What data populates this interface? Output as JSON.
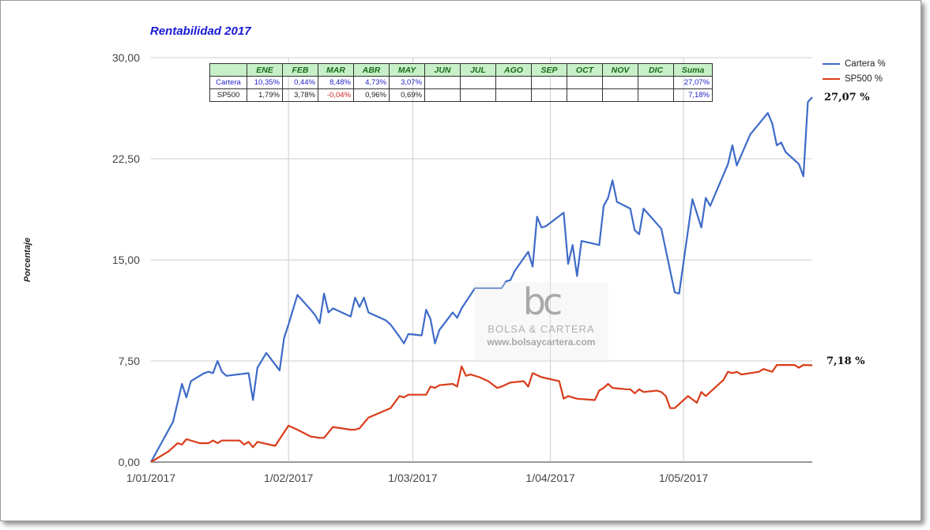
{
  "chart_data": {
    "type": "line",
    "title": "Rentabilidad 2017",
    "ylabel": "Porcentaje",
    "xlabel": "",
    "ylim": [
      0,
      30
    ],
    "yticks": [
      "0,00",
      "7,50",
      "15,00",
      "22,50",
      "30,00"
    ],
    "xticks": [
      "1/01/2017",
      "1/02/2017",
      "1/03/2017",
      "1/04/2017",
      "1/05/2017"
    ],
    "grid": true,
    "legend_position": "right",
    "series": [
      {
        "name": "Cartera %",
        "color": "#3e6bc8",
        "end_label": "27,07 %",
        "points": [
          [
            "2017-01-01",
            0.0
          ],
          [
            "2017-01-06",
            3.0
          ],
          [
            "2017-01-08",
            5.8
          ],
          [
            "2017-01-09",
            4.8
          ],
          [
            "2017-01-10",
            6.0
          ],
          [
            "2017-01-13",
            6.6
          ],
          [
            "2017-01-14",
            6.7
          ],
          [
            "2017-01-15",
            6.6
          ],
          [
            "2017-01-16",
            7.5
          ],
          [
            "2017-01-17",
            6.7
          ],
          [
            "2017-01-18",
            6.4
          ],
          [
            "2017-01-23",
            6.6
          ],
          [
            "2017-01-24",
            4.6
          ],
          [
            "2017-01-25",
            7.0
          ],
          [
            "2017-01-27",
            8.1
          ],
          [
            "2017-01-30",
            6.8
          ],
          [
            "2017-01-31",
            9.2
          ],
          [
            "2017-02-01",
            10.2
          ],
          [
            "2017-02-03",
            12.4
          ],
          [
            "2017-02-06",
            11.3
          ],
          [
            "2017-02-07",
            10.9
          ],
          [
            "2017-02-08",
            10.3
          ],
          [
            "2017-02-09",
            12.5
          ],
          [
            "2017-02-10",
            11.1
          ],
          [
            "2017-02-11",
            11.4
          ],
          [
            "2017-02-15",
            10.8
          ],
          [
            "2017-02-16",
            12.2
          ],
          [
            "2017-02-17",
            11.5
          ],
          [
            "2017-02-18",
            12.2
          ],
          [
            "2017-02-19",
            11.1
          ],
          [
            "2017-02-23",
            10.5
          ],
          [
            "2017-02-24",
            10.2
          ],
          [
            "2017-02-26",
            9.3
          ],
          [
            "2017-02-27",
            8.8
          ],
          [
            "2017-02-28",
            9.5
          ],
          [
            "2017-03-03",
            9.4
          ],
          [
            "2017-03-04",
            11.3
          ],
          [
            "2017-03-05",
            10.6
          ],
          [
            "2017-03-06",
            8.8
          ],
          [
            "2017-03-07",
            9.8
          ],
          [
            "2017-03-10",
            11.1
          ],
          [
            "2017-03-11",
            10.7
          ],
          [
            "2017-03-12",
            11.4
          ],
          [
            "2017-03-15",
            12.9
          ],
          [
            "2017-03-16",
            12.9
          ],
          [
            "2017-03-19",
            12.9
          ],
          [
            "2017-03-21",
            12.9
          ],
          [
            "2017-03-22",
            13.4
          ],
          [
            "2017-03-23",
            13.5
          ],
          [
            "2017-03-24",
            14.2
          ],
          [
            "2017-03-27",
            15.6
          ],
          [
            "2017-03-28",
            14.5
          ],
          [
            "2017-03-29",
            18.2
          ],
          [
            "2017-03-30",
            17.4
          ],
          [
            "2017-03-31",
            17.5
          ],
          [
            "2017-04-04",
            18.5
          ],
          [
            "2017-04-05",
            14.7
          ],
          [
            "2017-04-06",
            16.1
          ],
          [
            "2017-04-07",
            13.8
          ],
          [
            "2017-04-08",
            16.4
          ],
          [
            "2017-04-12",
            16.1
          ],
          [
            "2017-04-13",
            19.0
          ],
          [
            "2017-04-14",
            19.6
          ],
          [
            "2017-04-15",
            20.9
          ],
          [
            "2017-04-16",
            19.3
          ],
          [
            "2017-04-19",
            18.8
          ],
          [
            "2017-04-20",
            17.2
          ],
          [
            "2017-04-21",
            16.9
          ],
          [
            "2017-04-22",
            18.8
          ],
          [
            "2017-04-26",
            17.3
          ],
          [
            "2017-04-29",
            12.6
          ],
          [
            "2017-04-30",
            12.5
          ],
          [
            "2017-05-03",
            19.5
          ],
          [
            "2017-05-05",
            17.4
          ],
          [
            "2017-05-06",
            19.6
          ],
          [
            "2017-05-07",
            19.0
          ],
          [
            "2017-05-11",
            22.1
          ],
          [
            "2017-05-12",
            23.5
          ],
          [
            "2017-05-13",
            22.0
          ],
          [
            "2017-05-16",
            24.3
          ],
          [
            "2017-05-20",
            25.9
          ],
          [
            "2017-05-21",
            25.1
          ],
          [
            "2017-05-22",
            23.5
          ],
          [
            "2017-05-23",
            23.7
          ],
          [
            "2017-05-24",
            23.0
          ],
          [
            "2017-05-27",
            22.1
          ],
          [
            "2017-05-28",
            21.2
          ],
          [
            "2017-05-29",
            26.7
          ],
          [
            "2017-05-30",
            27.07
          ]
        ]
      },
      {
        "name": "SP500 %",
        "color": "#d93c1a",
        "end_label": "7,18 %",
        "points": [
          [
            "2017-01-01",
            0.0
          ],
          [
            "2017-01-05",
            0.8
          ],
          [
            "2017-01-07",
            1.4
          ],
          [
            "2017-01-08",
            1.3
          ],
          [
            "2017-01-09",
            1.7
          ],
          [
            "2017-01-12",
            1.4
          ],
          [
            "2017-01-14",
            1.4
          ],
          [
            "2017-01-15",
            1.6
          ],
          [
            "2017-01-16",
            1.4
          ],
          [
            "2017-01-17",
            1.6
          ],
          [
            "2017-01-21",
            1.6
          ],
          [
            "2017-01-22",
            1.3
          ],
          [
            "2017-01-23",
            1.5
          ],
          [
            "2017-01-24",
            1.1
          ],
          [
            "2017-01-25",
            1.5
          ],
          [
            "2017-01-29",
            1.2
          ],
          [
            "2017-02-01",
            2.7
          ],
          [
            "2017-02-03",
            2.4
          ],
          [
            "2017-02-06",
            1.9
          ],
          [
            "2017-02-08",
            1.8
          ],
          [
            "2017-02-09",
            1.8
          ],
          [
            "2017-02-11",
            2.6
          ],
          [
            "2017-02-15",
            2.4
          ],
          [
            "2017-02-16",
            2.4
          ],
          [
            "2017-02-17",
            2.5
          ],
          [
            "2017-02-18",
            2.9
          ],
          [
            "2017-02-19",
            3.3
          ],
          [
            "2017-02-24",
            4.0
          ],
          [
            "2017-02-26",
            4.9
          ],
          [
            "2017-02-27",
            4.8
          ],
          [
            "2017-02-28",
            5.0
          ],
          [
            "2017-03-04",
            5.0
          ],
          [
            "2017-03-05",
            5.6
          ],
          [
            "2017-03-06",
            5.5
          ],
          [
            "2017-03-07",
            5.7
          ],
          [
            "2017-03-10",
            5.8
          ],
          [
            "2017-03-11",
            5.6
          ],
          [
            "2017-03-12",
            7.1
          ],
          [
            "2017-03-13",
            6.4
          ],
          [
            "2017-03-14",
            6.5
          ],
          [
            "2017-03-16",
            6.3
          ],
          [
            "2017-03-18",
            6.0
          ],
          [
            "2017-03-20",
            5.5
          ],
          [
            "2017-03-21",
            5.6
          ],
          [
            "2017-03-23",
            5.9
          ],
          [
            "2017-03-26",
            6.0
          ],
          [
            "2017-03-27",
            5.6
          ],
          [
            "2017-03-28",
            6.6
          ],
          [
            "2017-03-30",
            6.3
          ],
          [
            "2017-04-03",
            6.0
          ],
          [
            "2017-04-04",
            4.7
          ],
          [
            "2017-04-05",
            4.9
          ],
          [
            "2017-04-07",
            4.7
          ],
          [
            "2017-04-11",
            4.6
          ],
          [
            "2017-04-12",
            5.3
          ],
          [
            "2017-04-13",
            5.5
          ],
          [
            "2017-04-14",
            5.8
          ],
          [
            "2017-04-15",
            5.5
          ],
          [
            "2017-04-18",
            5.4
          ],
          [
            "2017-04-19",
            5.4
          ],
          [
            "2017-04-20",
            5.1
          ],
          [
            "2017-04-21",
            5.4
          ],
          [
            "2017-04-22",
            5.2
          ],
          [
            "2017-04-25",
            5.3
          ],
          [
            "2017-04-26",
            5.2
          ],
          [
            "2017-04-27",
            4.9
          ],
          [
            "2017-04-28",
            4.0
          ],
          [
            "2017-04-29",
            4.0
          ],
          [
            "2017-05-02",
            4.9
          ],
          [
            "2017-05-04",
            4.4
          ],
          [
            "2017-05-05",
            5.2
          ],
          [
            "2017-05-06",
            4.9
          ],
          [
            "2017-05-10",
            6.1
          ],
          [
            "2017-05-11",
            6.7
          ],
          [
            "2017-05-12",
            6.6
          ],
          [
            "2017-05-13",
            6.7
          ],
          [
            "2017-05-14",
            6.5
          ],
          [
            "2017-05-18",
            6.7
          ],
          [
            "2017-05-19",
            6.9
          ],
          [
            "2017-05-20",
            6.8
          ],
          [
            "2017-05-21",
            6.7
          ],
          [
            "2017-05-22",
            7.2
          ],
          [
            "2017-05-26",
            7.2
          ],
          [
            "2017-05-27",
            7.0
          ],
          [
            "2017-05-28",
            7.2
          ],
          [
            "2017-05-30",
            7.18
          ]
        ]
      }
    ]
  },
  "table": {
    "headers": [
      "",
      "ENE",
      "FEB",
      "MAR",
      "ABR",
      "MAY",
      "JUN",
      "JUL",
      "AGO",
      "SEP",
      "OCT",
      "NOV",
      "DIC",
      "Suma"
    ],
    "rows": [
      {
        "label": "Cartera",
        "values": [
          "10,35%",
          "0,44%",
          "8,48%",
          "4,73%",
          "3,07%",
          "",
          "",
          "",
          "",
          "",
          "",
          ""
        ],
        "sum": "27,07%"
      },
      {
        "label": "SP500",
        "values": [
          "1,79%",
          "3,78%",
          "-0,04%",
          "0,96%",
          "0,69%",
          "",
          "",
          "",
          "",
          "",
          "",
          ""
        ],
        "sum": "7,18%"
      }
    ]
  },
  "watermark": {
    "logo": "bc",
    "name": "BOLSA & CARTERA",
    "url": "www.bolsaycartera.com"
  }
}
